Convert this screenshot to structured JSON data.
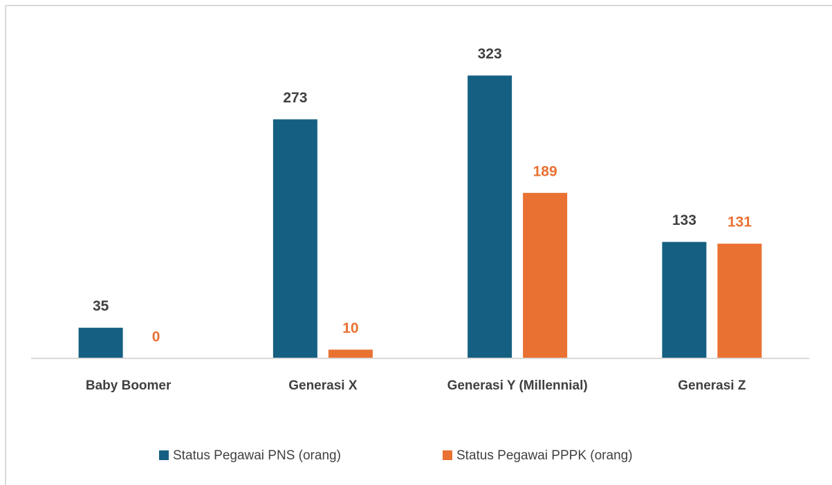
{
  "chart_data": {
    "type": "bar",
    "categories": [
      "Baby Boomer",
      "Generasi X",
      "Generasi Y (Millennial)",
      "Generasi Z"
    ],
    "series": [
      {
        "name": "Status Pegawai PNS (orang)",
        "color": "#156082",
        "label_color": "#404040",
        "values": [
          35,
          273,
          323,
          133
        ]
      },
      {
        "name": "Status Pegawai PPPK (orang)",
        "color": "#e97132",
        "label_color": "#e97132",
        "values": [
          0,
          10,
          189,
          131
        ]
      }
    ],
    "ylim": [
      0,
      350
    ]
  }
}
